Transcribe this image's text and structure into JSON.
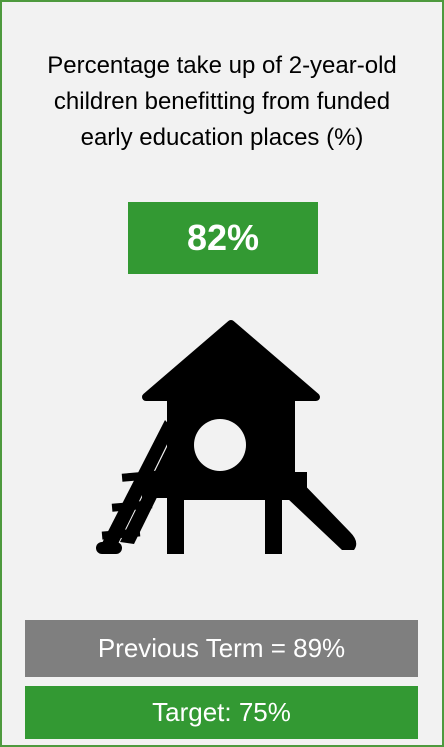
{
  "title": "Percentage take up of 2-year-old children benefitting from funded early education places (%)",
  "value": "82%",
  "previous": "Previous Term = 89%",
  "target": "Target: 75%"
}
